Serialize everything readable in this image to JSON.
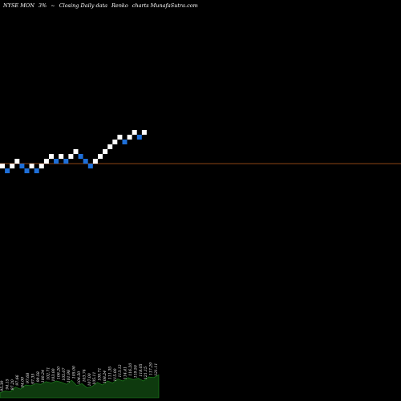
{
  "header": {
    "symbol": "NYSE MON",
    "change": "3%",
    "arrow": "~",
    "description": "Closing Daily data",
    "chart_kind": "Renko",
    "site": "charts MunafaSutra.com"
  },
  "colors": {
    "background": "#000000",
    "up_brick": "#ffffff",
    "down_brick": "#1e6fd9",
    "last_price_line": "#8b4513",
    "volume_fill": "#0e3a0e",
    "volume_edge": "#1f8a1f"
  },
  "chart_data": {
    "type": "renko",
    "title": "NYSE MON 3% ~ Closing Daily data Renko charts MunafaSutra.com",
    "bricks": [
      {
        "dir": "up",
        "level": 0
      },
      {
        "dir": "down",
        "level": -1
      },
      {
        "dir": "up",
        "level": 0
      },
      {
        "dir": "up",
        "level": 1
      },
      {
        "dir": "down",
        "level": 0
      },
      {
        "dir": "down",
        "level": -1
      },
      {
        "dir": "up",
        "level": 0
      },
      {
        "dir": "down",
        "level": -1
      },
      {
        "dir": "up",
        "level": 0
      },
      {
        "dir": "up",
        "level": 1
      },
      {
        "dir": "up",
        "level": 2
      },
      {
        "dir": "down",
        "level": 1
      },
      {
        "dir": "up",
        "level": 2
      },
      {
        "dir": "down",
        "level": 1
      },
      {
        "dir": "up",
        "level": 2
      },
      {
        "dir": "up",
        "level": 3
      },
      {
        "dir": "down",
        "level": 2
      },
      {
        "dir": "down",
        "level": 1
      },
      {
        "dir": "down",
        "level": 0
      },
      {
        "dir": "up",
        "level": 1
      },
      {
        "dir": "up",
        "level": 2
      },
      {
        "dir": "up",
        "level": 3
      },
      {
        "dir": "up",
        "level": 4
      },
      {
        "dir": "up",
        "level": 5
      },
      {
        "dir": "up",
        "level": 6
      },
      {
        "dir": "down",
        "level": 5
      },
      {
        "dir": "up",
        "level": 6
      },
      {
        "dir": "up",
        "level": 7
      },
      {
        "dir": "down",
        "level": 6
      },
      {
        "dir": "up",
        "level": 7
      }
    ],
    "last_price_level": 0.5,
    "volume_labels": [
      "95.39",
      "94.15",
      "97.20",
      "97.66",
      "94.00",
      "97.68",
      "97.35",
      "99.58",
      "100.24",
      "102.71",
      "103.00",
      "106.20",
      "105.07",
      "101.98",
      "105.00",
      "104.50",
      "103.74",
      "107.00",
      "105.11",
      "109.71",
      "108.24",
      "111.35",
      "115.00",
      "113.12",
      "114.41",
      "116.20",
      "119.50",
      "118.05",
      "121.15",
      "117.29",
      "121.11"
    ],
    "volume_levels": [
      0.15,
      0.2,
      0.18,
      0.32,
      0.26,
      0.38,
      0.36,
      0.42,
      0.4,
      0.48,
      0.44,
      0.5,
      0.46,
      0.4,
      0.52,
      0.36,
      0.42,
      0.3,
      0.34,
      0.46,
      0.38,
      0.5,
      0.44,
      0.56,
      0.5,
      0.6,
      0.54,
      0.58,
      0.5,
      0.62,
      0.6,
      0.68
    ]
  }
}
